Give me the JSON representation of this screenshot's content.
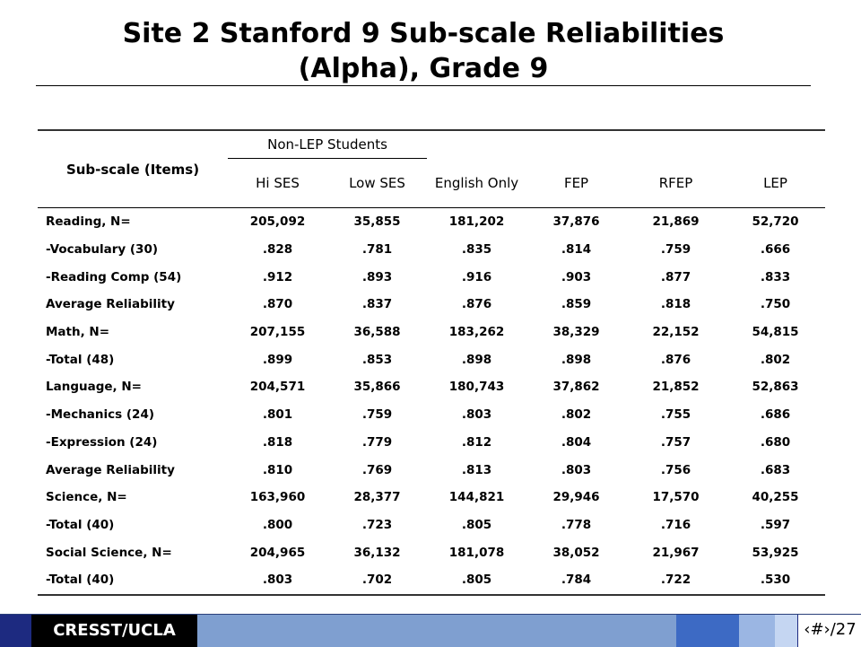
{
  "title": {
    "line1": "Site 2 Stanford 9 Sub-scale Reliabilities",
    "line2": "(Alpha), Grade 9"
  },
  "table": {
    "group_header": "Non-LEP Students",
    "first_col_header": "Sub-scale (Items)",
    "columns": [
      "Hi SES",
      "Low SES",
      "English Only",
      "FEP",
      "RFEP",
      "LEP"
    ],
    "rows": [
      [
        "Reading, N=",
        "205,092",
        "35,855",
        "181,202",
        "37,876",
        "21,869",
        "52,720"
      ],
      [
        "-Vocabulary (30)",
        ".828",
        ".781",
        ".835",
        ".814",
        ".759",
        ".666"
      ],
      [
        "-Reading Comp (54)",
        ".912",
        ".893",
        ".916",
        ".903",
        ".877",
        ".833"
      ],
      [
        "Average Reliability",
        ".870",
        ".837",
        ".876",
        ".859",
        ".818",
        ".750"
      ],
      [
        "Math, N=",
        "207,155",
        "36,588",
        "183,262",
        "38,329",
        "22,152",
        "54,815"
      ],
      [
        "-Total (48)",
        ".899",
        ".853",
        ".898",
        ".898",
        ".876",
        ".802"
      ],
      [
        "Language, N=",
        "204,571",
        "35,866",
        "180,743",
        "37,862",
        "21,852",
        "52,863"
      ],
      [
        "-Mechanics (24)",
        ".801",
        ".759",
        ".803",
        ".802",
        ".755",
        ".686"
      ],
      [
        "-Expression (24)",
        ".818",
        ".779",
        ".812",
        ".804",
        ".757",
        ".680"
      ],
      [
        "Average Reliability",
        ".810",
        ".769",
        ".813",
        ".803",
        ".756",
        ".683"
      ],
      [
        "Science, N=",
        "163,960",
        "28,377",
        "144,821",
        "29,946",
        "17,570",
        "40,255"
      ],
      [
        "-Total (40)",
        ".800",
        ".723",
        ".805",
        ".778",
        ".716",
        ".597"
      ],
      [
        "Social Science, N=",
        "204,965",
        "36,132",
        "181,078",
        "38,052",
        "21,967",
        "53,925"
      ],
      [
        "-Total (40)",
        ".803",
        ".702",
        ".805",
        ".784",
        ".722",
        ".530"
      ]
    ]
  },
  "footer": {
    "brand": "CRESST/UCLA",
    "page": "‹#›/27"
  },
  "colors": {
    "footer_bar": "#7f9fd0",
    "footer_dark": "#1d2a80",
    "footer_brand_bg": "#000000"
  }
}
